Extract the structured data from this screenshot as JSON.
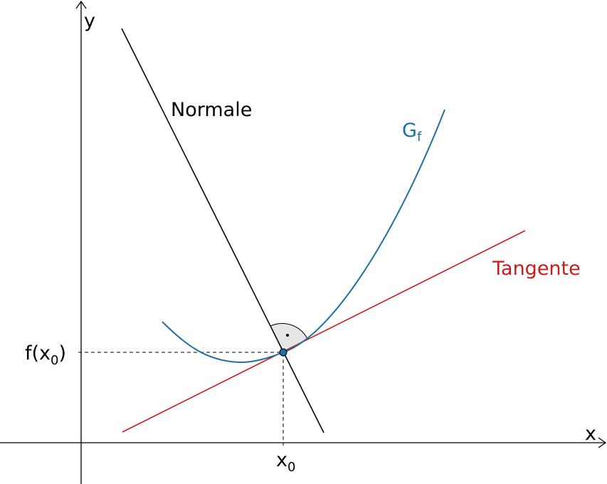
{
  "diagram": {
    "axes": {
      "x_label": "x",
      "y_label": "y"
    },
    "point": {
      "x_label_main": "x",
      "x_label_sub": "0",
      "y_label_prefix": "f(x",
      "y_label_sub": "0",
      "y_label_suffix": ")"
    },
    "curve": {
      "label_main": "G",
      "label_sub": "f",
      "color": "#1f6f9f"
    },
    "normal": {
      "label": "Normale",
      "color": "#000000"
    },
    "tangent": {
      "label": "Tangente",
      "color": "#cc1a1a"
    }
  }
}
